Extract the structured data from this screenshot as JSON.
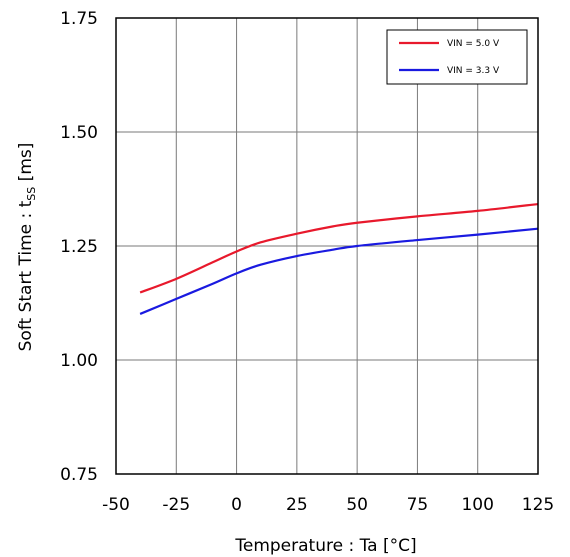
{
  "chart_data": {
    "type": "line",
    "xlabel": "Temperature : Ta [°C]",
    "ylabel_main": "Soft Start Time : t",
    "ylabel_sub": "SS",
    "ylabel_suffix": " [ms]",
    "xlim": [
      -50,
      125
    ],
    "ylim": [
      0.75,
      1.75
    ],
    "x_ticks": [
      "-50",
      "-25",
      "0",
      "25",
      "50",
      "75",
      "100",
      "125"
    ],
    "y_ticks": [
      "0.75",
      "1.00",
      "1.25",
      "1.50",
      "1.75"
    ],
    "x_tick_values": [
      -50,
      -25,
      0,
      25,
      50,
      75,
      100,
      125
    ],
    "y_tick_values": [
      0.75,
      1.0,
      1.25,
      1.5,
      1.75
    ],
    "grid": true,
    "legend_position": "top-right",
    "series": [
      {
        "name": "VIN = 5.0 V",
        "color": "#e8192c",
        "x": [
          -40,
          -25,
          -10,
          0,
          10,
          25,
          40,
          50,
          75,
          100,
          125
        ],
        "y": [
          1.148,
          1.178,
          1.214,
          1.238,
          1.258,
          1.277,
          1.293,
          1.301,
          1.315,
          1.327,
          1.342
        ]
      },
      {
        "name": "VIN = 3.3 V",
        "color": "#1a1ae0",
        "x": [
          -40,
          -25,
          -10,
          0,
          10,
          25,
          40,
          50,
          75,
          100,
          125
        ],
        "y": [
          1.101,
          1.134,
          1.167,
          1.19,
          1.209,
          1.228,
          1.242,
          1.25,
          1.263,
          1.275,
          1.288
        ]
      }
    ]
  }
}
